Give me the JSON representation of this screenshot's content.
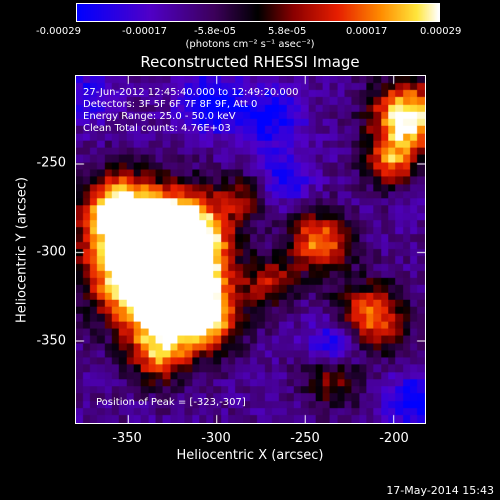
{
  "colorbar": {
    "ticks": [
      "-0.00029",
      "-0.00017",
      "-5.8e-05",
      "5.8e-05",
      "0.00017",
      "0.00029"
    ],
    "units": "(photons cm⁻² s⁻¹ asec⁻²)"
  },
  "title": "Reconstructed RHESSI Image",
  "info": {
    "line1": "27-Jun-2012 12:45:40.000 to 12:49:20.000",
    "line2": "Detectors: 3F 5F 6F 7F 8F 9F, Att 0",
    "line3": "Energy Range: 25.0 - 50.0 keV",
    "line4": "Clean     Total counts: 4.76E+03"
  },
  "peak_label": "Position of Peak = [-323,-307]",
  "axes": {
    "xlabel": "Heliocentric X (arcsec)",
    "ylabel": "Heliocentric Y (arcsec)",
    "x_ticks": [
      "-350",
      "-300",
      "-250",
      "-200"
    ],
    "y_ticks": [
      "-250",
      "-300",
      "-350"
    ]
  },
  "footer_date": "17-May-2014 15:43",
  "chart_data": {
    "type": "heatmap",
    "title": "Reconstructed RHESSI Image",
    "xlabel": "Heliocentric X (arcsec)",
    "ylabel": "Heliocentric Y (arcsec)",
    "xlim": [
      -380,
      -183
    ],
    "ylim": [
      -395,
      -200
    ],
    "x_ticks": [
      -350,
      -300,
      -250,
      -200
    ],
    "y_ticks": [
      -250,
      -300,
      -350
    ],
    "colorbar_range": [
      -0.00029,
      0.00029
    ],
    "colormap": "blue-purple-red-yellow-white",
    "peak_position": [
      -323,
      -307
    ]
  }
}
